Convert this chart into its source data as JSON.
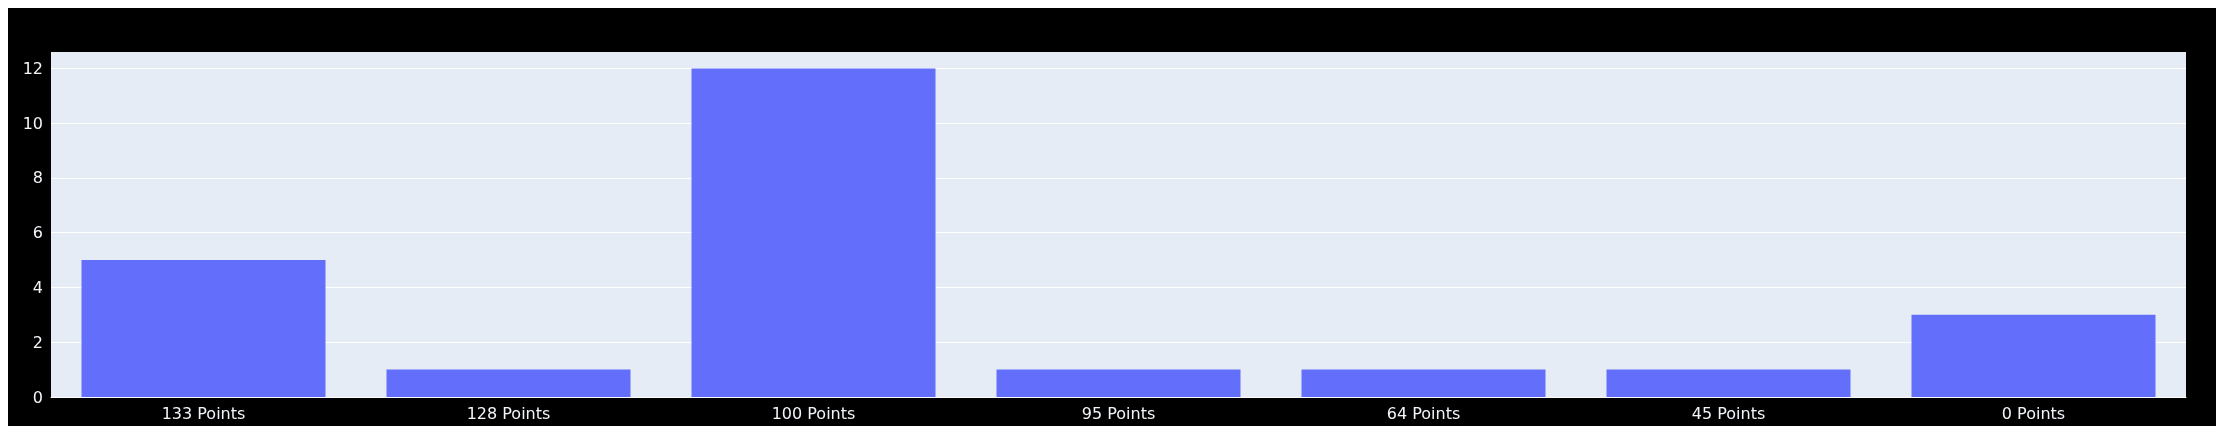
{
  "chart_data": {
    "type": "bar",
    "categories": [
      "133 Points",
      "128 Points",
      "100 Points",
      "95 Points",
      "64 Points",
      "45 Points",
      "0 Points"
    ],
    "values": [
      5,
      1,
      12,
      1,
      1,
      1,
      3
    ],
    "color": "#636efa",
    "ylim": [
      0,
      12.6
    ],
    "yticks": [
      0,
      2,
      4,
      6,
      8,
      10,
      12
    ],
    "grid": "y"
  }
}
